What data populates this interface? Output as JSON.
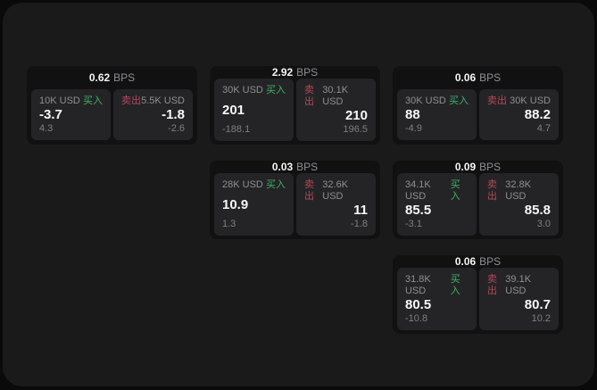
{
  "colors": {
    "buy_green": "#40b168",
    "sell_red": "#b4495a",
    "window_bg": "#1a1a1b",
    "card_bg": "#111112",
    "panel_bg": "#242426"
  },
  "labels": {
    "bps": "BPS",
    "buy": "买入",
    "sell": "卖出"
  },
  "cards": [
    {
      "bps_value": "0.62",
      "buy": {
        "amount": "10K USD",
        "value": "-3.7",
        "delta": "4.3"
      },
      "sell": {
        "amount": "5.5K USD",
        "value": "-1.8",
        "delta": "-2.6"
      }
    },
    {
      "bps_value": "2.92",
      "buy": {
        "amount": "30K USD",
        "value": "201",
        "delta": "-188.1"
      },
      "sell": {
        "amount": "30.1K USD",
        "value": "210",
        "delta": "196.5"
      }
    },
    {
      "bps_value": "0.06",
      "buy": {
        "amount": "30K USD",
        "value": "88",
        "delta": "-4.9"
      },
      "sell": {
        "amount": "30K USD",
        "value": "88.2",
        "delta": "4.7"
      }
    },
    {
      "bps_value": "0.03",
      "buy": {
        "amount": "28K USD",
        "value": "10.9",
        "delta": "1.3"
      },
      "sell": {
        "amount": "32.6K USD",
        "value": "11",
        "delta": "-1.8"
      }
    },
    {
      "bps_value": "0.09",
      "buy": {
        "amount": "34.1K USD",
        "value": "85.5",
        "delta": "-3.1"
      },
      "sell": {
        "amount": "32.8K USD",
        "value": "85.8",
        "delta": "3.0"
      }
    },
    {
      "bps_value": "0.06",
      "buy": {
        "amount": "31.8K USD",
        "value": "80.5",
        "delta": "-10.8"
      },
      "sell": {
        "amount": "39.1K USD",
        "value": "80.7",
        "delta": "10.2"
      }
    }
  ]
}
